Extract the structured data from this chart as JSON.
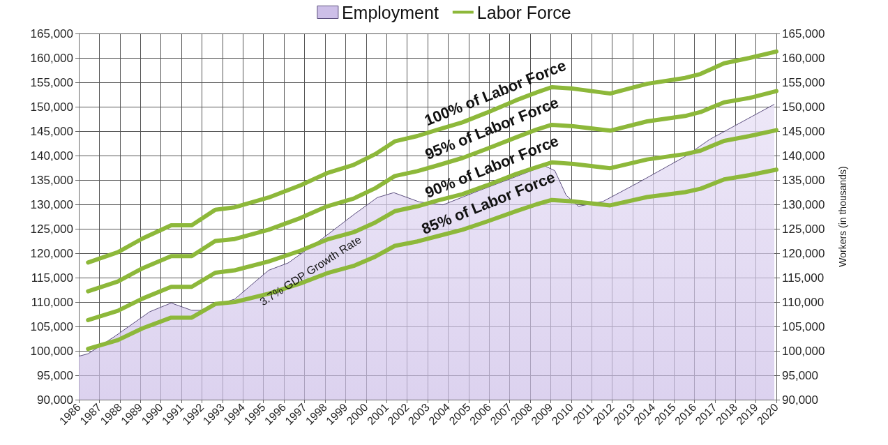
{
  "chart_data": {
    "type": "line",
    "y2label": "Workers (in thousands)",
    "xlim": [
      1986,
      2020
    ],
    "xticks": [
      1986,
      1987,
      1988,
      1989,
      1990,
      1991,
      1992,
      1993,
      1994,
      1995,
      1996,
      1997,
      1998,
      1999,
      2000,
      2001,
      2002,
      2003,
      2004,
      2005,
      2006,
      2007,
      2008,
      2009,
      2010,
      2011,
      2012,
      2013,
      2014,
      2015,
      2016,
      2017,
      2018,
      2019,
      2020
    ],
    "ylim": [
      90000,
      165000
    ],
    "yticks": [
      {
        "value": 90000,
        "label": "90,000"
      },
      {
        "value": 95000,
        "label": "95,000"
      },
      {
        "value": 100000,
        "label": "100,000"
      },
      {
        "value": 105000,
        "label": "105,000"
      },
      {
        "value": 110000,
        "label": "110,000"
      },
      {
        "value": 115000,
        "label": "115,000"
      },
      {
        "value": 120000,
        "label": "120,000"
      },
      {
        "value": 125000,
        "label": "125,000"
      },
      {
        "value": 130000,
        "label": "130,000"
      },
      {
        "value": 135000,
        "label": "135,000"
      },
      {
        "value": 140000,
        "label": "140,000"
      },
      {
        "value": 145000,
        "label": "145,000"
      },
      {
        "value": 150000,
        "label": "150,000"
      },
      {
        "value": 155000,
        "label": "155,000"
      },
      {
        "value": 160000,
        "label": "160,000"
      },
      {
        "value": 165000,
        "label": "165,000"
      }
    ],
    "y2lim": [
      90000,
      165000
    ],
    "y2ticks": [
      {
        "value": 90000,
        "label": "90,000"
      },
      {
        "value": 95000,
        "label": "95,000"
      },
      {
        "value": 100000,
        "label": "100,000"
      },
      {
        "value": 105000,
        "label": "105,000"
      },
      {
        "value": 110000,
        "label": "110,000"
      },
      {
        "value": 115000,
        "label": "115,000"
      },
      {
        "value": 120000,
        "label": "120,000"
      },
      {
        "value": 125000,
        "label": "125,000"
      },
      {
        "value": 130000,
        "label": "130,000"
      },
      {
        "value": 135000,
        "label": "135,000"
      },
      {
        "value": 140000,
        "label": "140,000"
      },
      {
        "value": 145000,
        "label": "145,000"
      },
      {
        "value": 150000,
        "label": "150,000"
      },
      {
        "value": 155000,
        "label": "155,000"
      },
      {
        "value": 160000,
        "label": "160,000"
      },
      {
        "value": 165000,
        "label": "165,000"
      }
    ],
    "grid": true,
    "legend": "top",
    "marker": "none",
    "line_style": "solid",
    "series": [
      {
        "name": "Employment",
        "type": "area",
        "color": "#cdbfe8",
        "x": [
          1986,
          1986.45,
          1987.8,
          1989.45,
          1990.5,
          1991.5,
          1991.9,
          1993.6,
          1995.25,
          1996.2,
          1998.0,
          1999.4,
          2000.55,
          2001.35,
          2002.6,
          2003.75,
          2005.5,
          2008.7,
          2009.2,
          2009.75,
          2010.35,
          2011.55,
          2013.2,
          2015.55,
          2016.75,
          2019.9
        ],
        "values": [
          98900,
          99400,
          103100,
          108000,
          109800,
          108300,
          108300,
          110600,
          116500,
          118000,
          123400,
          127900,
          131400,
          132400,
          130500,
          129900,
          132800,
          137900,
          136900,
          131900,
          129600,
          130600,
          134300,
          139800,
          143300,
          150500
        ]
      },
      {
        "name": "Labor Force",
        "color": "#8db83a",
        "x": [
          1986.45,
          1987.9,
          1989.1,
          1990.5,
          1991.5,
          1992.65,
          1993.6,
          1995.25,
          1996.8,
          1998.1,
          1999.4,
          2000.45,
          2001.4,
          2002.5,
          2003.5,
          2004.7,
          2005.9,
          2007.3,
          2008.3,
          2009.05,
          2010.1,
          2011.9,
          2013.7,
          2015.55,
          2016.3,
          2017.45,
          2018.7,
          2020
        ],
        "values": [
          118100,
          120200,
          123000,
          125700,
          125700,
          128900,
          129400,
          131400,
          133900,
          136400,
          138100,
          140300,
          142900,
          144000,
          145300,
          146800,
          148800,
          151300,
          152900,
          154000,
          153700,
          152700,
          154700,
          155900,
          156700,
          158900,
          160000,
          161300
        ]
      },
      {
        "color": "#8db83a",
        "x": [
          1986.45,
          1987.9,
          1989.1,
          1990.5,
          1991.5,
          1992.65,
          1993.6,
          1995.25,
          1996.8,
          1998.1,
          1999.4,
          2000.45,
          2001.4,
          2002.5,
          2003.5,
          2004.7,
          2005.9,
          2007.3,
          2008.3,
          2009.05,
          2010.1,
          2011.9,
          2013.7,
          2015.55,
          2016.3,
          2017.45,
          2018.7,
          2020
        ],
        "values": [
          112200,
          114200,
          116900,
          119400,
          119400,
          122500,
          122900,
          124800,
          127200,
          129600,
          131200,
          133300,
          135800,
          136800,
          138000,
          139500,
          141400,
          143700,
          145300,
          146300,
          146000,
          145100,
          147000,
          148100,
          148900,
          150900,
          151800,
          153200
        ]
      },
      {
        "color": "#8db83a",
        "x": [
          1986.45,
          1987.9,
          1989.1,
          1990.5,
          1991.5,
          1992.65,
          1993.6,
          1995.25,
          1996.8,
          1998.1,
          1999.4,
          2000.45,
          2001.4,
          2002.5,
          2003.5,
          2004.7,
          2005.9,
          2007.3,
          2008.3,
          2009.05,
          2010.1,
          2011.9,
          2013.7,
          2015.55,
          2016.3,
          2017.45,
          2018.7,
          2020
        ],
        "values": [
          106300,
          108200,
          110700,
          113100,
          113100,
          116000,
          116500,
          118300,
          120500,
          122800,
          124300,
          126300,
          128600,
          129600,
          130800,
          132100,
          133900,
          136200,
          137600,
          138600,
          138300,
          137400,
          139200,
          140300,
          141000,
          143000,
          144000,
          145200
        ]
      },
      {
        "color": "#8db83a",
        "x": [
          1986.45,
          1987.9,
          1989.1,
          1990.5,
          1991.5,
          1992.65,
          1993.6,
          1995.25,
          1996.8,
          1998.1,
          1999.4,
          2000.45,
          2001.4,
          2002.5,
          2003.5,
          2004.7,
          2005.9,
          2007.3,
          2008.3,
          2009.05,
          2010.1,
          2011.9,
          2013.7,
          2015.55,
          2016.3,
          2017.45,
          2018.7,
          2020
        ],
        "values": [
          100400,
          102200,
          104600,
          106800,
          106800,
          109600,
          110000,
          111700,
          113800,
          115900,
          117400,
          119300,
          121500,
          122400,
          123500,
          124800,
          126500,
          128600,
          130000,
          130900,
          130600,
          129800,
          131500,
          132500,
          133200,
          135100,
          136000,
          137100
        ]
      }
    ],
    "annotations": [
      "100% of Labor Force",
      "95% of Labor Force",
      "90% of Labor Force",
      "85% of Labor Force",
      "3.7% GDP Growth Rate"
    ]
  }
}
